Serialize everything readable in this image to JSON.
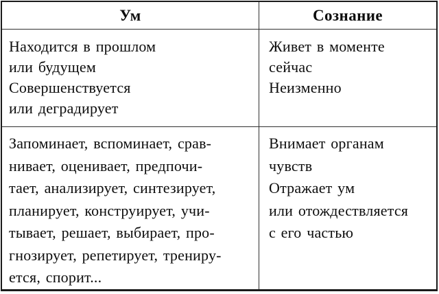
{
  "table": {
    "headers": {
      "mind": "Ум",
      "consciousness": "Сознание"
    },
    "rows": [
      {
        "mind_lines": [
          "Находится в прошлом",
          "или будущем",
          "Совершенствуется",
          "или деградирует"
        ],
        "consciousness_lines": [
          "Живет в моменте",
          "сейчас",
          "Неизменно"
        ]
      },
      {
        "mind_lines": [
          "Запоминает, вспоминает, срав-",
          "нивает, оценивает, предпочи-",
          "тает, анализирует, синтезирует,",
          "планирует, конструирует, учи-",
          "тывает, решает, выбирает, про-",
          "гнозирует, репетирует, трениру-",
          "ется, спорит..."
        ],
        "consciousness_lines": [
          "Внимает органам",
          "чувств",
          "Отражает ум",
          "или отождествляется",
          "с его частью"
        ]
      }
    ]
  },
  "colors": {
    "background": "#ffffff",
    "text": "#0d0d0d",
    "outer_border": "#1a1a1a",
    "inner_border": "#2f2f2f"
  }
}
